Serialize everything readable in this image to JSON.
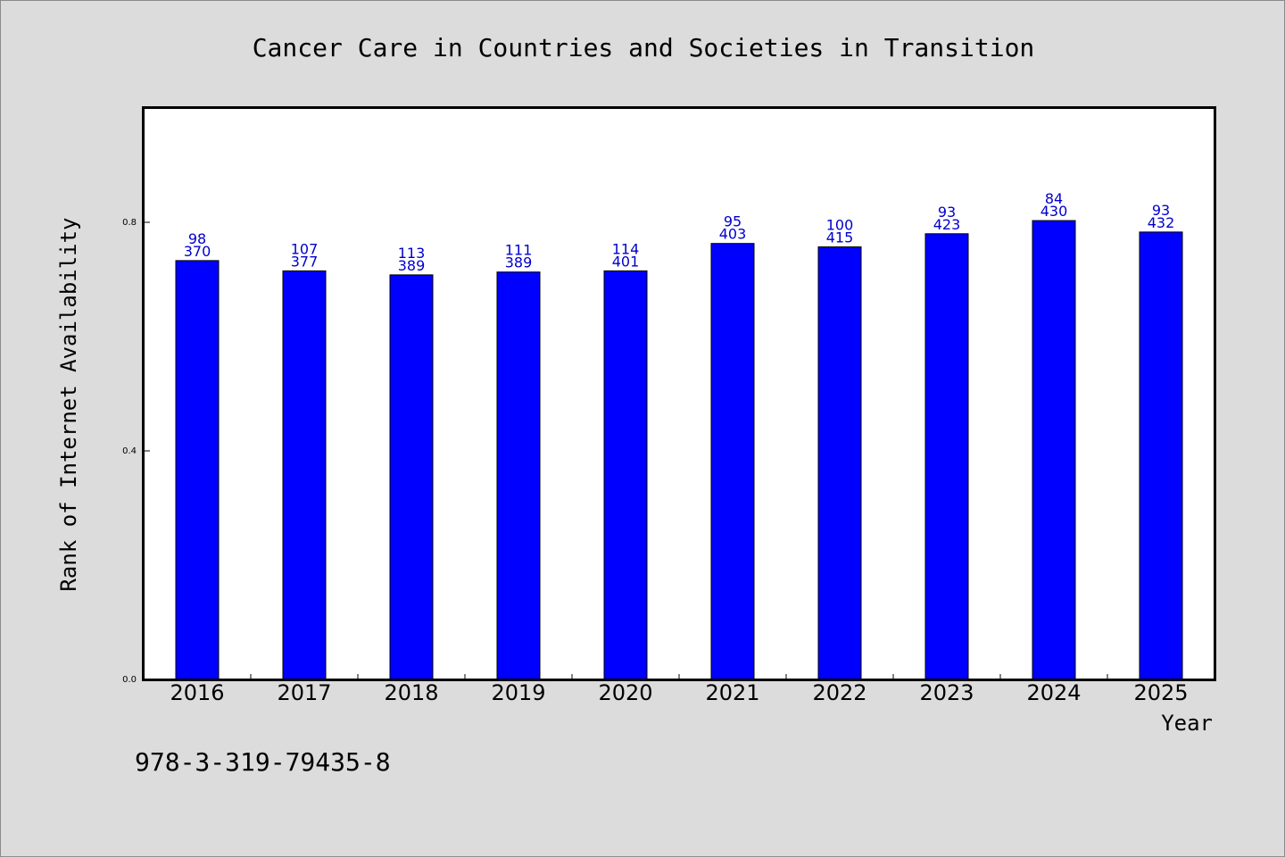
{
  "chart_data": {
    "type": "bar",
    "title": "Cancer Care in Countries and Societies in Transition",
    "xlabel": "Year",
    "ylabel": "Rank of Internet Availability",
    "categories": [
      "2016",
      "2017",
      "2018",
      "2019",
      "2020",
      "2021",
      "2022",
      "2023",
      "2024",
      "2025"
    ],
    "values": [
      0.733,
      0.715,
      0.708,
      0.713,
      0.715,
      0.763,
      0.757,
      0.78,
      0.803,
      0.783
    ],
    "data_labels": [
      [
        "98",
        "370"
      ],
      [
        "107",
        "377"
      ],
      [
        "113",
        "389"
      ],
      [
        "111",
        "389"
      ],
      [
        "114",
        "401"
      ],
      [
        "95",
        "403"
      ],
      [
        "100",
        "415"
      ],
      [
        "93",
        "423"
      ],
      [
        "84",
        "430"
      ],
      [
        "93",
        "432"
      ]
    ],
    "y_ticks": [
      "0.0",
      "0.4",
      "0.8"
    ],
    "y_tick_values": [
      0.0,
      0.4,
      0.8
    ],
    "ylim": [
      0,
      1.0
    ],
    "grid": false,
    "bar_color": "#0000ff",
    "label_color": "#0000cc"
  },
  "footer": {
    "isbn": "978-3-319-79435-8"
  }
}
